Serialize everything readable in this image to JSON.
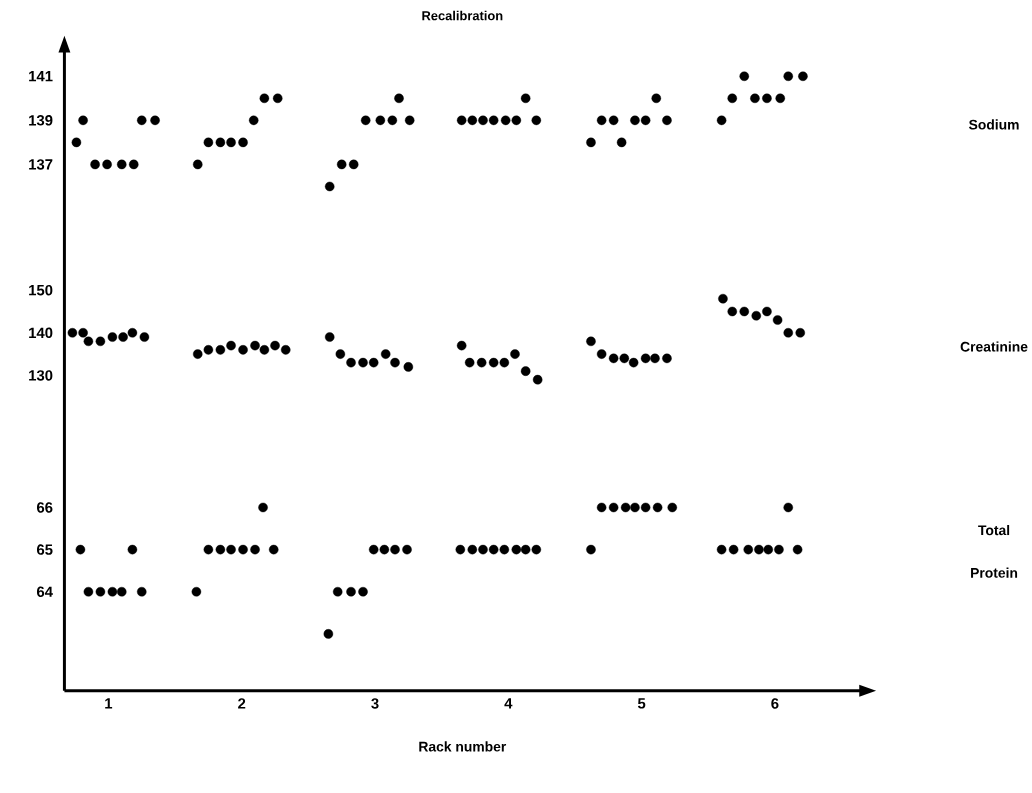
{
  "chart_data": {
    "type": "scatter",
    "title": "Recalibration",
    "xlabel": "Rack number",
    "xlim": [
      0.67,
      6.64
    ],
    "xticks": [
      1,
      2,
      3,
      4,
      5,
      6
    ],
    "ylim": [
      113.13,
      142.12
    ],
    "yticks": [
      137,
      139,
      141
    ],
    "y2lim": [
      56.0,
      206.0
    ],
    "y2ticks": [
      130,
      140,
      150
    ],
    "y3lim": [
      61.65,
      76.82
    ],
    "y3ticks": [
      64,
      65,
      66
    ],
    "marker": "circle",
    "series": [
      {
        "name": "Sodium",
        "color": "#000000",
        "axis": "y",
        "x": [
          0.76,
          0.81,
          0.9,
          0.99,
          1.1,
          1.19,
          1.25,
          1.35,
          1.67,
          1.75,
          1.84,
          1.92,
          2.01,
          2.09,
          2.17,
          2.27,
          2.66,
          2.75,
          2.84,
          2.93,
          3.04,
          3.13,
          3.18,
          3.26,
          3.65,
          3.73,
          3.81,
          3.89,
          3.98,
          4.06,
          4.13,
          4.21,
          4.62,
          4.7,
          4.79,
          4.85,
          4.95,
          5.03,
          5.11,
          5.19,
          5.6,
          5.68,
          5.77,
          5.85,
          5.94,
          6.04,
          6.1,
          6.21
        ],
        "values": [
          138,
          139,
          137,
          137,
          137,
          137,
          139,
          139,
          137,
          138,
          138,
          138,
          138,
          139,
          140,
          140,
          136,
          137,
          137,
          139,
          139,
          139,
          140,
          139,
          139,
          139,
          139,
          139,
          139,
          139,
          140,
          139,
          138,
          139,
          139,
          138,
          139,
          139,
          140,
          139,
          139,
          140,
          141,
          140,
          140,
          140,
          141,
          141
        ]
      },
      {
        "name": "Creatinine",
        "color": "#000000",
        "axis": "y2",
        "x": [
          0.73,
          0.81,
          0.85,
          0.94,
          1.03,
          1.11,
          1.18,
          1.27,
          1.67,
          1.75,
          1.84,
          1.92,
          2.01,
          2.1,
          2.17,
          2.25,
          2.33,
          2.66,
          2.74,
          2.82,
          2.91,
          2.99,
          3.08,
          3.15,
          3.25,
          3.65,
          3.71,
          3.8,
          3.89,
          3.97,
          4.05,
          4.13,
          4.22,
          4.62,
          4.7,
          4.79,
          4.87,
          4.94,
          5.03,
          5.1,
          5.19,
          5.61,
          5.68,
          5.77,
          5.86,
          5.94,
          6.02,
          6.1,
          6.19
        ],
        "values": [
          140,
          140,
          138,
          138,
          139,
          139,
          140,
          139,
          135,
          136,
          136,
          137,
          136,
          137,
          136,
          137,
          136,
          139,
          135,
          133,
          133,
          133,
          135,
          133,
          132,
          137,
          133,
          133,
          133,
          133,
          135,
          131,
          129,
          138,
          135,
          134,
          134,
          133,
          134,
          134,
          134,
          148,
          145,
          145,
          144,
          145,
          143,
          140,
          140
        ]
      },
      {
        "name": "Total Protein",
        "color": "#000000",
        "axis": "y3",
        "x": [
          0.79,
          0.85,
          0.94,
          1.03,
          1.1,
          1.18,
          1.25,
          1.66,
          1.75,
          1.84,
          1.92,
          2.01,
          2.1,
          2.16,
          2.24,
          2.65,
          2.72,
          2.82,
          2.91,
          2.99,
          3.07,
          3.15,
          3.24,
          3.64,
          3.73,
          3.81,
          3.89,
          3.97,
          4.06,
          4.13,
          4.21,
          4.62,
          4.7,
          4.79,
          4.88,
          4.95,
          5.03,
          5.12,
          5.23,
          5.6,
          5.69,
          5.8,
          5.88,
          5.95,
          6.03,
          6.1,
          6.17
        ],
        "values": [
          65,
          64,
          64,
          64,
          64,
          65,
          64,
          64,
          65,
          65,
          65,
          65,
          65,
          66,
          65,
          63,
          64,
          64,
          64,
          65,
          65,
          65,
          65,
          65,
          65,
          65,
          65,
          65,
          65,
          65,
          65,
          65,
          66,
          66,
          66,
          66,
          66,
          66,
          66,
          65,
          65,
          65,
          65,
          65,
          65,
          66,
          65
        ]
      }
    ]
  }
}
